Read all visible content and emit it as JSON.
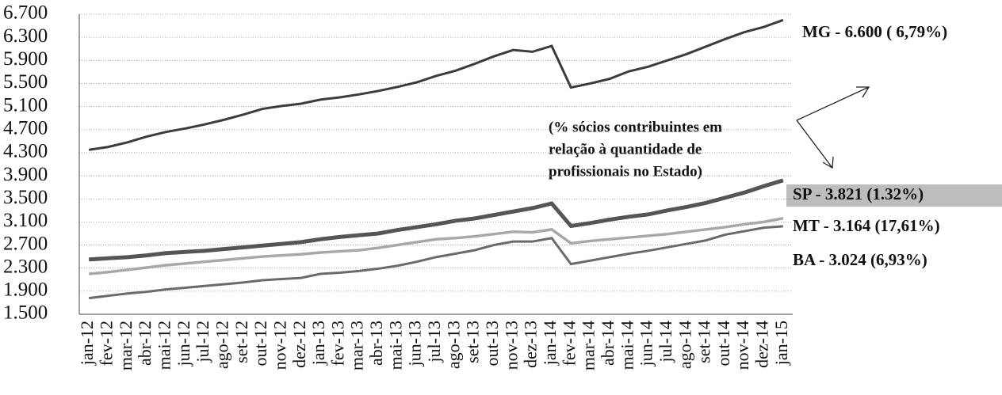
{
  "chart_data": {
    "type": "line",
    "categories": [
      "jan-12",
      "fev-12",
      "mar-12",
      "abr-12",
      "mai-12",
      "jun-12",
      "jul-12",
      "ago-12",
      "set-12",
      "out-12",
      "nov-12",
      "dez-12",
      "jan-13",
      "fev-13",
      "mar-13",
      "abr-13",
      "mai-13",
      "jun-13",
      "jul-13",
      "ago-13",
      "set-13",
      "out-13",
      "nov-13",
      "dez-13",
      "jan-14",
      "fev-14",
      "mar-14",
      "abr-14",
      "mai-14",
      "jun-14",
      "jul-14",
      "ago-14",
      "set-14",
      "out-14",
      "nov-14",
      "dez-14",
      "jan-15"
    ],
    "series": [
      {
        "name": "MG - 6.600 ( 6,79%)",
        "color": "#3c3c3c",
        "values": [
          4350,
          4400,
          4480,
          4580,
          4660,
          4720,
          4790,
          4870,
          4960,
          5060,
          5110,
          5150,
          5220,
          5260,
          5310,
          5370,
          5440,
          5520,
          5630,
          5720,
          5840,
          5970,
          6080,
          6050,
          6150,
          5430,
          5500,
          5580,
          5710,
          5790,
          5900,
          6010,
          6140,
          6270,
          6390,
          6480,
          6600
        ]
      },
      {
        "name": "SP - 3.821 (1.32%)",
        "color": "#555555",
        "values": [
          2450,
          2470,
          2490,
          2520,
          2560,
          2580,
          2600,
          2630,
          2660,
          2690,
          2720,
          2750,
          2800,
          2840,
          2870,
          2900,
          2960,
          3010,
          3060,
          3120,
          3160,
          3220,
          3280,
          3340,
          3420,
          3030,
          3080,
          3140,
          3190,
          3230,
          3300,
          3360,
          3430,
          3520,
          3610,
          3720,
          3821
        ]
      },
      {
        "name": "MT - 3.164 (17,61%)",
        "color": "#a8a8a8",
        "values": [
          2200,
          2230,
          2270,
          2310,
          2350,
          2380,
          2410,
          2440,
          2470,
          2500,
          2520,
          2540,
          2570,
          2590,
          2610,
          2650,
          2700,
          2750,
          2800,
          2820,
          2850,
          2890,
          2930,
          2920,
          2970,
          2730,
          2770,
          2800,
          2830,
          2860,
          2890,
          2930,
          2970,
          3010,
          3060,
          3100,
          3164
        ]
      },
      {
        "name": "BA - 3.024 (6,93%)",
        "color": "#6a6a6a",
        "values": [
          1780,
          1820,
          1860,
          1890,
          1930,
          1960,
          1990,
          2020,
          2050,
          2090,
          2110,
          2130,
          2200,
          2220,
          2250,
          2290,
          2340,
          2410,
          2490,
          2550,
          2610,
          2700,
          2760,
          2760,
          2820,
          2370,
          2430,
          2490,
          2550,
          2600,
          2660,
          2720,
          2780,
          2880,
          2940,
          3000,
          3024
        ]
      }
    ],
    "ylim": [
      1500,
      6700
    ],
    "yticks": [
      {
        "value": 1500,
        "label": "1.500"
      },
      {
        "value": 1900,
        "label": "1.900"
      },
      {
        "value": 2300,
        "label": "2.300"
      },
      {
        "value": 2700,
        "label": "2.700"
      },
      {
        "value": 3100,
        "label": "3.100"
      },
      {
        "value": 3500,
        "label": "3.500"
      },
      {
        "value": 3900,
        "label": "3.900"
      },
      {
        "value": 4300,
        "label": "4.300"
      },
      {
        "value": 4700,
        "label": "4.700"
      },
      {
        "value": 5100,
        "label": "5.100"
      },
      {
        "value": 5500,
        "label": "5.500"
      },
      {
        "value": 5900,
        "label": "5.900"
      },
      {
        "value": 6300,
        "label": "6.300"
      },
      {
        "value": 6700,
        "label": "6.700"
      }
    ],
    "grid": true,
    "annotation": [
      "(% sócios contribuintes em",
      "relação à quantidade de",
      "profissionais no Estado)"
    ]
  }
}
